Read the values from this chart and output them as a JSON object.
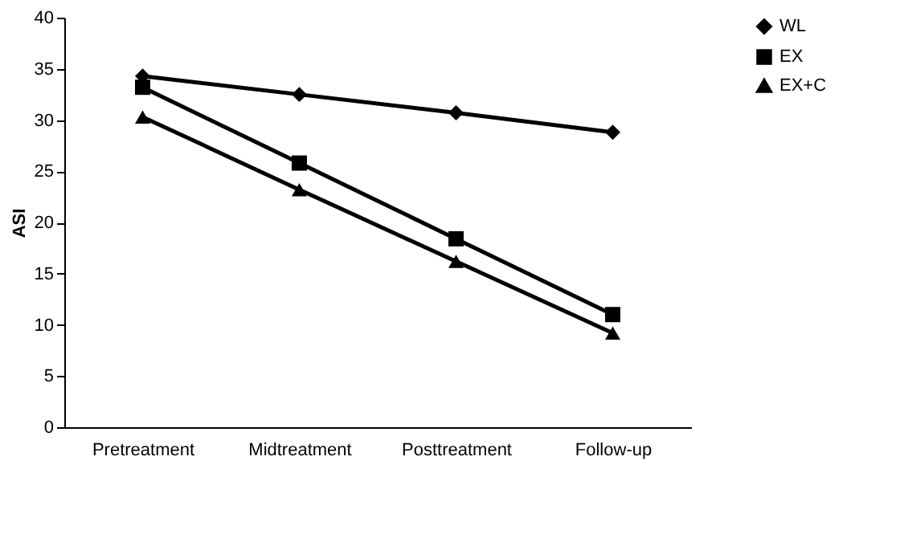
{
  "chart_data": {
    "type": "line",
    "ylabel": "ASI",
    "categories": [
      "Pretreatment",
      "Midtreatment",
      "Posttreatment",
      "Follow-up"
    ],
    "series": [
      {
        "name": "WL",
        "color": "#000000",
        "marker": "diamond",
        "values": [
          34.3,
          32.5,
          30.7,
          28.8
        ]
      },
      {
        "name": "EX",
        "color": "#000000",
        "marker": "square",
        "values": [
          33.2,
          25.8,
          18.4,
          11.0
        ]
      },
      {
        "name": "EX+C",
        "color": "#000000",
        "marker": "triangle",
        "values": [
          30.3,
          23.2,
          16.2,
          9.2
        ]
      }
    ],
    "ylim": [
      0,
      40
    ],
    "yticks": [
      0,
      5,
      10,
      15,
      20,
      25,
      30,
      35,
      40
    ],
    "grid": false,
    "legend": "top right",
    "line_style": "solid"
  }
}
